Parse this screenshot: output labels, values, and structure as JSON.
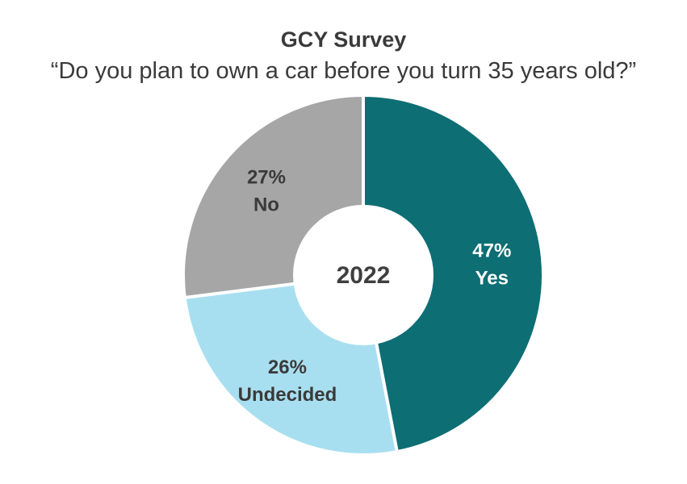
{
  "chart_data": {
    "type": "pie",
    "title": "GCY Survey",
    "subtitle": "“Do you plan to own a car before you turn 35 years old?”",
    "center_label": "2022",
    "slices": [
      {
        "label": "Yes",
        "value": 47,
        "value_text": "47%",
        "color": "#0d6e74",
        "text_color": "#ffffff"
      },
      {
        "label": "Undecided",
        "value": 26,
        "value_text": "26%",
        "color": "#a8dff0",
        "text_color": "#3a3a3a"
      },
      {
        "label": "No",
        "value": 27,
        "value_text": "27%",
        "color": "#a6a6a6",
        "text_color": "#3a3a3a"
      }
    ]
  }
}
